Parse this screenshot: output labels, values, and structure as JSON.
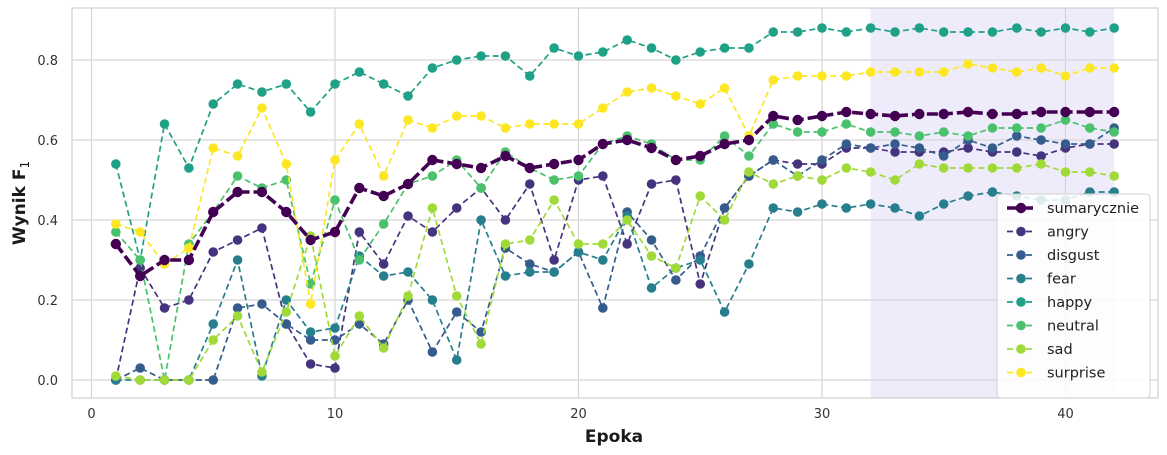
{
  "chart_data": {
    "type": "line",
    "xlabel": "Epoka",
    "ylabel": "Wynik F",
    "ylabel_subscript": "1",
    "xlim": [
      -0.8,
      43.8
    ],
    "ylim": [
      -0.045,
      0.93
    ],
    "x_ticks": [
      0,
      10,
      20,
      30,
      40
    ],
    "y_ticks": [
      0.0,
      0.2,
      0.4,
      0.6,
      0.8
    ],
    "x_tick_labels": [
      "0",
      "10",
      "20",
      "30",
      "40"
    ],
    "y_tick_labels": [
      "0.0",
      "0.2",
      "0.4",
      "0.6",
      "0.8"
    ],
    "grid": true,
    "legend_position": "lower right",
    "highlight_span": {
      "x_from": 32,
      "x_to": 42,
      "color": "#e8e6fa"
    },
    "x": [
      1,
      2,
      3,
      4,
      5,
      6,
      7,
      8,
      9,
      10,
      11,
      12,
      13,
      14,
      15,
      16,
      17,
      18,
      19,
      20,
      21,
      22,
      23,
      24,
      25,
      26,
      27,
      28,
      29,
      30,
      31,
      32,
      33,
      34,
      35,
      36,
      37,
      38,
      39,
      40,
      41,
      42
    ],
    "series": [
      {
        "name": "sumarycznie",
        "color": "#440154",
        "style": "bold",
        "values": [
          0.34,
          0.26,
          0.3,
          0.3,
          0.42,
          0.47,
          0.47,
          0.42,
          0.35,
          0.37,
          0.48,
          0.46,
          0.49,
          0.55,
          0.54,
          0.53,
          0.56,
          0.53,
          0.54,
          0.55,
          0.59,
          0.6,
          0.58,
          0.55,
          0.56,
          0.59,
          0.6,
          0.66,
          0.65,
          0.66,
          0.67,
          0.665,
          0.66,
          0.665,
          0.665,
          0.67,
          0.665,
          0.665,
          0.67,
          0.67,
          0.67,
          0.67
        ]
      },
      {
        "name": "angry",
        "color": "#46337e",
        "style": "dashed",
        "values": [
          0.0,
          0.28,
          0.18,
          0.2,
          0.32,
          0.35,
          0.38,
          0.14,
          0.04,
          0.03,
          0.37,
          0.29,
          0.41,
          0.37,
          0.43,
          0.48,
          0.4,
          0.49,
          0.3,
          0.5,
          0.51,
          0.34,
          0.49,
          0.5,
          0.24,
          0.43,
          0.51,
          0.55,
          0.54,
          0.54,
          0.58,
          0.58,
          0.57,
          0.57,
          0.57,
          0.58,
          0.57,
          0.57,
          0.56,
          0.58,
          0.59,
          0.59
        ]
      },
      {
        "name": "disgust",
        "color": "#365c8d",
        "style": "dashed",
        "values": [
          0.0,
          0.03,
          0.0,
          0.0,
          0.0,
          0.18,
          0.19,
          0.14,
          0.1,
          0.1,
          0.14,
          0.09,
          0.2,
          0.07,
          0.17,
          0.12,
          0.33,
          0.29,
          0.27,
          0.32,
          0.18,
          0.42,
          0.35,
          0.25,
          0.31,
          0.43,
          0.51,
          0.55,
          0.51,
          0.55,
          0.59,
          0.58,
          0.59,
          0.58,
          0.56,
          0.6,
          0.58,
          0.61,
          0.6,
          0.59,
          0.59,
          0.63
        ]
      },
      {
        "name": "fear",
        "color": "#277f8e",
        "style": "dashed",
        "values": [
          0.0,
          0.0,
          0.0,
          0.0,
          0.14,
          0.3,
          0.01,
          0.2,
          0.12,
          0.13,
          0.31,
          0.26,
          0.27,
          0.2,
          0.05,
          0.4,
          0.26,
          0.27,
          0.27,
          0.32,
          0.3,
          0.41,
          0.23,
          0.28,
          0.3,
          0.17,
          0.29,
          0.43,
          0.42,
          0.44,
          0.43,
          0.44,
          0.43,
          0.41,
          0.44,
          0.46,
          0.47,
          0.46,
          0.45,
          0.45,
          0.47,
          0.47
        ]
      },
      {
        "name": "happy",
        "color": "#1fa187",
        "style": "dashed",
        "values": [
          0.54,
          0.3,
          0.64,
          0.53,
          0.69,
          0.74,
          0.72,
          0.74,
          0.67,
          0.74,
          0.77,
          0.74,
          0.71,
          0.78,
          0.8,
          0.81,
          0.81,
          0.76,
          0.83,
          0.81,
          0.82,
          0.85,
          0.83,
          0.8,
          0.82,
          0.83,
          0.83,
          0.87,
          0.87,
          0.88,
          0.87,
          0.88,
          0.87,
          0.88,
          0.87,
          0.87,
          0.87,
          0.88,
          0.87,
          0.88,
          0.87,
          0.88
        ]
      },
      {
        "name": "neutral",
        "color": "#4ac16d",
        "style": "dashed",
        "values": [
          0.37,
          0.3,
          0.0,
          0.34,
          0.42,
          0.51,
          0.48,
          0.5,
          0.24,
          0.45,
          0.3,
          0.39,
          0.49,
          0.51,
          0.55,
          0.48,
          0.57,
          0.53,
          0.5,
          0.51,
          0.59,
          0.61,
          0.59,
          0.55,
          0.55,
          0.61,
          0.56,
          0.64,
          0.62,
          0.62,
          0.64,
          0.62,
          0.62,
          0.61,
          0.62,
          0.61,
          0.63,
          0.63,
          0.63,
          0.65,
          0.63,
          0.62
        ]
      },
      {
        "name": "sad",
        "color": "#a0da39",
        "style": "dashed",
        "values": [
          0.01,
          0.0,
          0.0,
          0.0,
          0.1,
          0.16,
          0.02,
          0.17,
          0.36,
          0.06,
          0.16,
          0.08,
          0.21,
          0.43,
          0.21,
          0.09,
          0.34,
          0.35,
          0.45,
          0.34,
          0.34,
          0.4,
          0.31,
          0.28,
          0.46,
          0.4,
          0.52,
          0.49,
          0.51,
          0.5,
          0.53,
          0.52,
          0.5,
          0.54,
          0.53,
          0.53,
          0.53,
          0.53,
          0.54,
          0.52,
          0.52,
          0.51
        ]
      },
      {
        "name": "surprise",
        "color": "#fde725",
        "style": "dashed",
        "values": [
          0.39,
          0.37,
          0.29,
          0.33,
          0.58,
          0.56,
          0.68,
          0.54,
          0.19,
          0.55,
          0.64,
          0.51,
          0.65,
          0.63,
          0.66,
          0.66,
          0.63,
          0.64,
          0.64,
          0.64,
          0.68,
          0.72,
          0.73,
          0.71,
          0.69,
          0.73,
          0.61,
          0.75,
          0.76,
          0.76,
          0.76,
          0.77,
          0.77,
          0.77,
          0.77,
          0.79,
          0.78,
          0.77,
          0.78,
          0.76,
          0.78,
          0.78
        ]
      }
    ]
  }
}
